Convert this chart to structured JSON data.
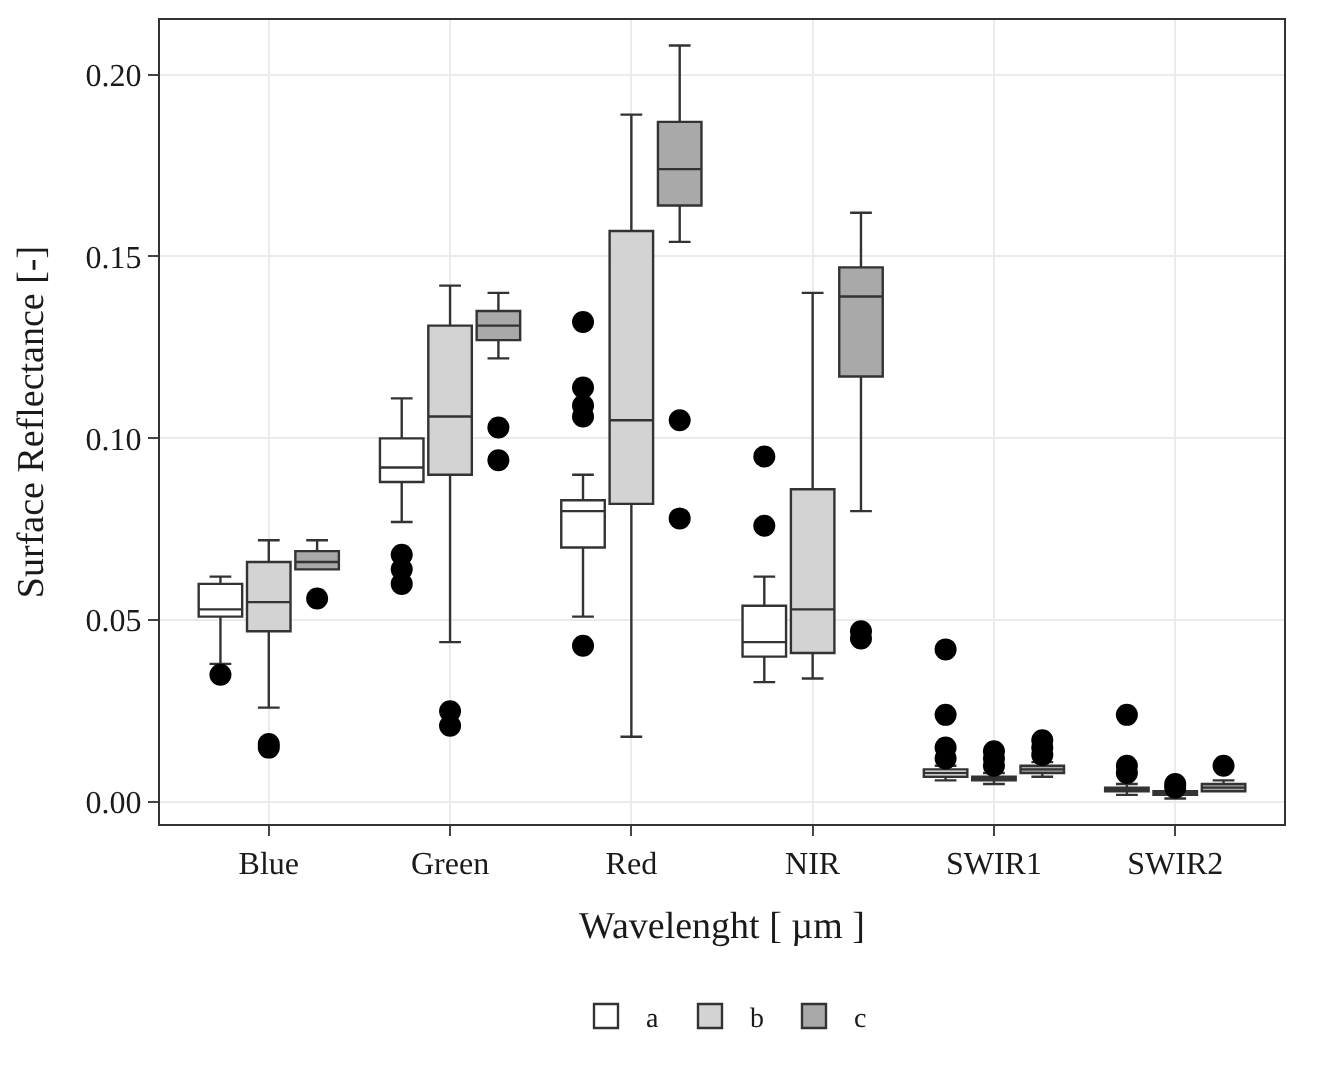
{
  "chart_data": {
    "type": "box",
    "xlabel": "Wavelenght [ µm ]",
    "ylabel": "Surface Reflectance [-]",
    "categories": [
      "Blue",
      "Green",
      "Red",
      "NIR",
      "SWIR1",
      "SWIR2"
    ],
    "ylim": [
      -0.006,
      0.215
    ],
    "yticks": [
      {
        "value": 0,
        "label": "0.00"
      },
      {
        "value": 0.05,
        "label": "0.05"
      },
      {
        "value": 0.1,
        "label": "0.10"
      },
      {
        "value": 0.15,
        "label": "0.15"
      },
      {
        "value": 0.2,
        "label": "0.20"
      }
    ],
    "grid": true,
    "legend": "bottom",
    "marker": "circle",
    "series": [
      {
        "name": "a",
        "color": "#ffffff",
        "boxes": [
          {
            "low": 0.038,
            "q1": 0.051,
            "median": 0.053,
            "q3": 0.06,
            "high": 0.062,
            "outliers": [
              0.035
            ]
          },
          {
            "low": 0.077,
            "q1": 0.088,
            "median": 0.092,
            "q3": 0.1,
            "high": 0.111,
            "outliers": [
              0.068,
              0.064,
              0.06
            ]
          },
          {
            "low": 0.051,
            "q1": 0.07,
            "median": 0.08,
            "q3": 0.083,
            "high": 0.09,
            "outliers": [
              0.132,
              0.114,
              0.109,
              0.106,
              0.043
            ]
          },
          {
            "low": 0.033,
            "q1": 0.04,
            "median": 0.044,
            "q3": 0.054,
            "high": 0.062,
            "outliers": [
              0.095,
              0.076
            ]
          },
          {
            "low": 0.006,
            "q1": 0.007,
            "median": 0.008,
            "q3": 0.009,
            "high": 0.01,
            "outliers": [
              0.042,
              0.024,
              0.015,
              0.012
            ]
          },
          {
            "low": 0.002,
            "q1": 0.003,
            "median": 0.003,
            "q3": 0.004,
            "high": 0.005,
            "outliers": [
              0.024,
              0.01,
              0.008
            ]
          }
        ]
      },
      {
        "name": "b",
        "color": "#d3d3d3",
        "boxes": [
          {
            "low": 0.026,
            "q1": 0.047,
            "median": 0.055,
            "q3": 0.066,
            "high": 0.072,
            "outliers": [
              0.016,
              0.015
            ]
          },
          {
            "low": 0.044,
            "q1": 0.09,
            "median": 0.106,
            "q3": 0.131,
            "high": 0.142,
            "outliers": [
              0.025,
              0.021
            ]
          },
          {
            "low": 0.018,
            "q1": 0.082,
            "median": 0.105,
            "q3": 0.157,
            "high": 0.189
          },
          {
            "low": 0.034,
            "q1": 0.041,
            "median": 0.053,
            "q3": 0.086,
            "high": 0.14
          },
          {
            "low": 0.005,
            "q1": 0.006,
            "median": 0.006,
            "q3": 0.007,
            "high": 0.008,
            "outliers": [
              0.014,
              0.012,
              0.01
            ]
          },
          {
            "low": 0.001,
            "q1": 0.002,
            "median": 0.002,
            "q3": 0.003,
            "high": 0.003,
            "outliers": [
              0.005,
              0.004
            ]
          }
        ]
      },
      {
        "name": "c",
        "color": "#a9a9a9",
        "boxes": [
          {
            "low": 0.064,
            "q1": 0.064,
            "median": 0.066,
            "q3": 0.069,
            "high": 0.072,
            "outliers": [
              0.056
            ]
          },
          {
            "low": 0.122,
            "q1": 0.127,
            "median": 0.131,
            "q3": 0.135,
            "high": 0.14,
            "outliers": [
              0.103,
              0.094
            ]
          },
          {
            "low": 0.154,
            "q1": 0.164,
            "median": 0.174,
            "q3": 0.187,
            "high": 0.208,
            "outliers": [
              0.105,
              0.078
            ]
          },
          {
            "low": 0.08,
            "q1": 0.117,
            "median": 0.139,
            "q3": 0.147,
            "high": 0.162,
            "outliers": [
              0.047,
              0.045
            ]
          },
          {
            "low": 0.007,
            "q1": 0.008,
            "median": 0.009,
            "q3": 0.01,
            "high": 0.011,
            "outliers": [
              0.017,
              0.015,
              0.013
            ]
          },
          {
            "low": 0.003,
            "q1": 0.003,
            "median": 0.004,
            "q3": 0.005,
            "high": 0.006,
            "outliers": [
              0.01
            ]
          }
        ]
      }
    ]
  }
}
